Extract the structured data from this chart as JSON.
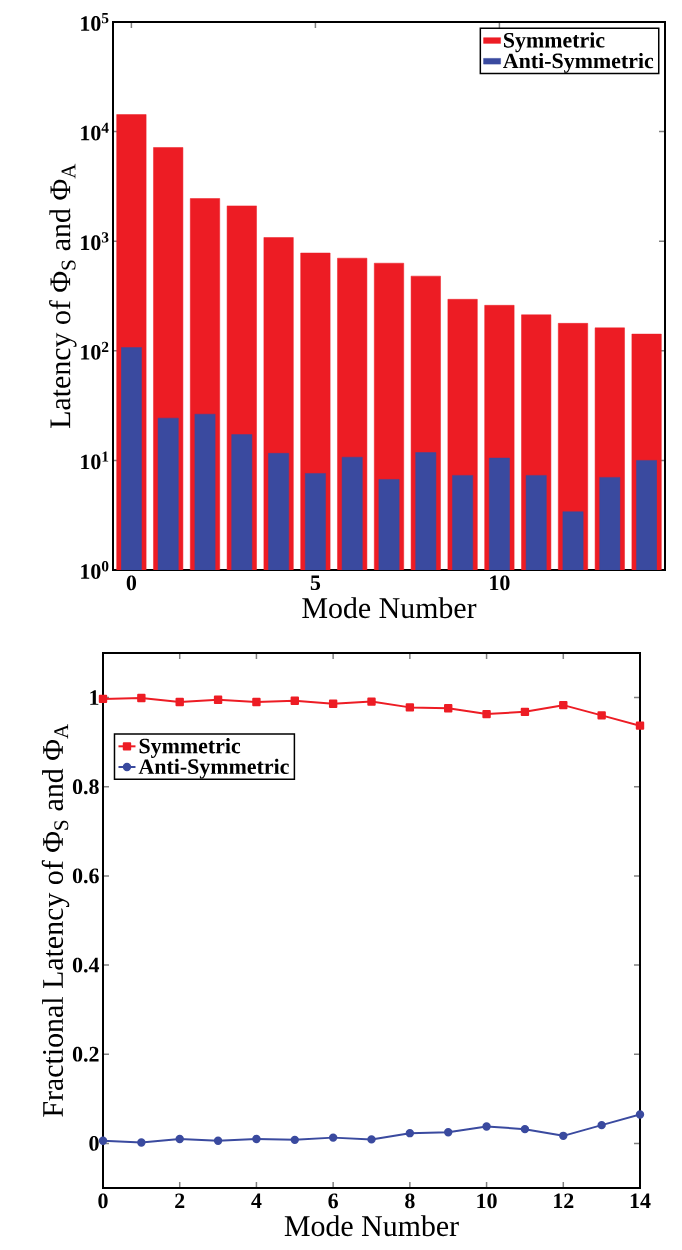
{
  "chart_data": [
    {
      "type": "bar",
      "xlabel": "Mode Number",
      "ylabel": "Latency of Φ$_{S}$ and Φ$_{A}$",
      "x": [
        0,
        1,
        2,
        3,
        4,
        5,
        6,
        7,
        8,
        9,
        10,
        11,
        12,
        13,
        14
      ],
      "series": [
        {
          "name": "Symmetric",
          "color": "#ed1c24",
          "values": [
            14300,
            7160,
            2450,
            2100,
            1080,
            780,
            700,
            630,
            480,
            295,
            260,
            213,
            178,
            162,
            142
          ]
        },
        {
          "name": "Anti-Symmetric",
          "color": "#3a4a9f",
          "values": [
            107,
            24.3,
            26.4,
            17.2,
            11.6,
            7.6,
            10.7,
            6.7,
            11.8,
            7.3,
            10.5,
            7.3,
            3.4,
            7.0,
            10.0
          ]
        }
      ],
      "xlim": [
        -0.5,
        14.5
      ],
      "xticks": [
        0,
        5,
        10
      ],
      "log": true,
      "ylim": [
        1,
        100000
      ],
      "yticks": [
        {
          "value": 1,
          "label": "10$^{0}$"
        },
        {
          "value": 10,
          "label": "10$^{1}$"
        },
        {
          "value": 100,
          "label": "10$^{2}$"
        },
        {
          "value": 1000,
          "label": "10$^{3}$"
        },
        {
          "value": 10000,
          "label": "10$^{4}$"
        },
        {
          "value": 100000,
          "label": "10$^{5}$"
        }
      ],
      "legend": "top right"
    },
    {
      "type": "line",
      "xlabel": "Mode Number",
      "ylabel": "Fractional Latency of Φ$_{S}$ and Φ$_{A}$",
      "x": [
        0,
        1,
        2,
        3,
        4,
        5,
        6,
        7,
        8,
        9,
        10,
        11,
        12,
        13,
        14
      ],
      "series": [
        {
          "name": "Symmetric",
          "color": "#ed1c24",
          "marker": "square",
          "values": [
            0.997,
            0.999,
            0.99,
            0.995,
            0.99,
            0.993,
            0.986,
            0.991,
            0.978,
            0.976,
            0.963,
            0.968,
            0.983,
            0.96,
            0.937
          ]
        },
        {
          "name": "Anti-Symmetric",
          "color": "#3a4a9f",
          "marker": "circle",
          "values": [
            0.006,
            0.002,
            0.01,
            0.006,
            0.01,
            0.008,
            0.013,
            0.009,
            0.023,
            0.025,
            0.038,
            0.032,
            0.017,
            0.041,
            0.065
          ]
        }
      ],
      "xlim": [
        0,
        14
      ],
      "xticks": [
        0,
        2,
        4,
        6,
        8,
        10,
        12,
        14
      ],
      "ylim": [
        -0.1,
        1.1
      ],
      "yticks": [
        0,
        0.2,
        0.4,
        0.6,
        0.8,
        1
      ],
      "legend": "top left",
      "line_style": "solid"
    }
  ]
}
